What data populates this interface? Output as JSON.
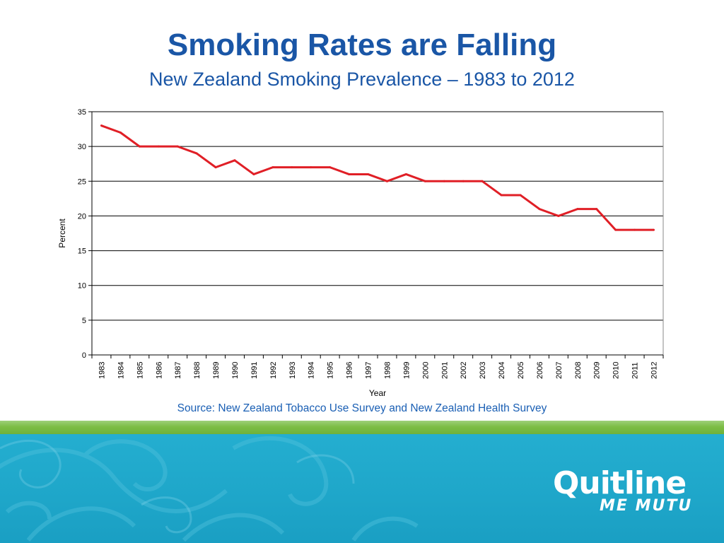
{
  "slide": {
    "title": "Smoking Rates are Falling",
    "subtitle": "New Zealand Smoking Prevalence – 1983 to 2012",
    "source": "Source: New Zealand Tobacco Use Survey and New Zealand Health Survey"
  },
  "logo": {
    "word": "Quitline",
    "tagline": "ME MUTU"
  },
  "colors": {
    "title": "#1a56a6",
    "line": "#e01f26",
    "green_band": "#7cbd45",
    "teal_band": "#1ea6c9"
  },
  "chart_data": {
    "type": "line",
    "title": "",
    "xlabel": "Year",
    "ylabel": "Percent",
    "ylim": [
      0,
      35
    ],
    "yticks": [
      0,
      5,
      10,
      15,
      20,
      25,
      30,
      35
    ],
    "grid": true,
    "categories": [
      "1983",
      "1984",
      "1985",
      "1986",
      "1987",
      "1988",
      "1989",
      "1990",
      "1991",
      "1992",
      "1993",
      "1994",
      "1995",
      "1996",
      "1997",
      "1998",
      "1999",
      "2000",
      "2001",
      "2002",
      "2003",
      "2004",
      "2005",
      "2006",
      "2007",
      "2008",
      "2009",
      "2010",
      "2011",
      "2012"
    ],
    "series": [
      {
        "values": [
          33,
          32,
          30,
          30,
          30,
          29,
          27,
          28,
          26,
          27,
          27,
          27,
          27,
          26,
          26,
          25,
          26,
          25,
          25,
          25,
          25,
          23,
          23,
          21,
          20,
          21,
          21,
          18,
          18,
          18
        ]
      }
    ]
  }
}
